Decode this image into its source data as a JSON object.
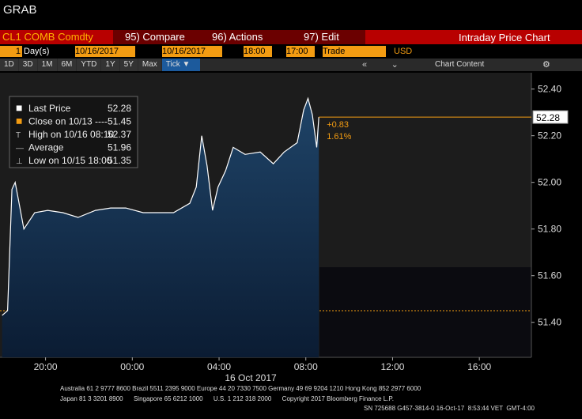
{
  "window_title": "GRAB",
  "toolbar": {
    "security": "CL1 COMB Comdty",
    "buttons": [
      "95) Compare",
      "96) Actions",
      "97) Edit"
    ],
    "panel_title": "Intraday Price Chart"
  },
  "controls": {
    "period_count": "1",
    "period_unit": "Day(s)",
    "start_date": "10/16/2017",
    "end_date": "10/16/2017",
    "start_time": "18:00",
    "end_time": "17:00",
    "field": "Trade",
    "currency": "USD"
  },
  "ranges": [
    "1D",
    "3D",
    "1M",
    "6M",
    "YTD",
    "1Y",
    "5Y",
    "Max",
    "Tick"
  ],
  "chart_content": "Chart Content",
  "chart_data": {
    "type": "area",
    "x": [
      0,
      0.25,
      0.45,
      0.6,
      1.0,
      1.5,
      2.1,
      2.8,
      3.5,
      4.3,
      5.0,
      5.7,
      6.5,
      7.2,
      7.9,
      8.65,
      8.95,
      9.2,
      9.45,
      9.7,
      9.95,
      10.3,
      10.65,
      11.2,
      11.9,
      12.5,
      13.0,
      13.6,
      13.9,
      14.1,
      14.3,
      14.5,
      14.6
    ],
    "series": [
      {
        "name": "Last Price",
        "color": "#ffffff",
        "values": [
          51.43,
          51.45,
          51.97,
          52.0,
          51.8,
          51.87,
          51.88,
          51.87,
          51.85,
          51.88,
          51.89,
          51.89,
          51.87,
          51.87,
          51.87,
          51.91,
          51.98,
          52.2,
          52.07,
          51.88,
          51.98,
          52.05,
          52.15,
          52.12,
          52.13,
          52.08,
          52.13,
          52.17,
          52.31,
          52.36,
          52.29,
          52.15,
          52.28
        ]
      }
    ],
    "xlim": [
      -0.1,
      24.4
    ],
    "xticks": [
      {
        "value": 2,
        "label": "20:00"
      },
      {
        "value": 6,
        "label": "00:00"
      },
      {
        "value": 10,
        "label": "04:00"
      },
      {
        "value": 14,
        "label": "08:00"
      },
      {
        "value": 18,
        "label": "12:00"
      },
      {
        "value": 22,
        "label": "16:00"
      }
    ],
    "x_label": "16 Oct 2017",
    "ylim": [
      51.25,
      52.47
    ],
    "yticks": [
      {
        "value": 51.4,
        "label": "51.40"
      },
      {
        "value": 51.6,
        "label": "51.60"
      },
      {
        "value": 51.8,
        "label": "51.80"
      },
      {
        "value": 52.0,
        "label": "52.00"
      },
      {
        "value": 52.2,
        "label": "52.20"
      },
      {
        "value": 52.4,
        "label": "52.40"
      }
    ],
    "legend": [
      {
        "label": "Last Price",
        "value": 52.28,
        "color": "#ffffff"
      },
      {
        "label": "Close on 10/13 ----",
        "value": 51.45,
        "color": "#f39c12"
      },
      {
        "label": "High on 10/16 08:10",
        "value": 52.37
      },
      {
        "label": "Average",
        "value": 51.96
      },
      {
        "label": "Low on 10/15 18:00",
        "value": 51.35
      }
    ],
    "annotations": [
      "+0.83",
      "1.61%"
    ]
  },
  "footer": [
    "Australia 61 2 9777 8600 Brazil 5511 2395 9000 Europe 44 20 7330 7500 Germany 49 69 9204 1210 Hong Kong 852 2977 6000",
    "Japan 81 3 3201 8900      Singapore 65 6212 1000      U.S. 1 212 318 2000      Copyright 2017 Bloomberg Finance L.P.",
    "SN 725688 G457-3814-0 16-Oct-17  8:53:44 VET  GMT-4:00"
  ]
}
